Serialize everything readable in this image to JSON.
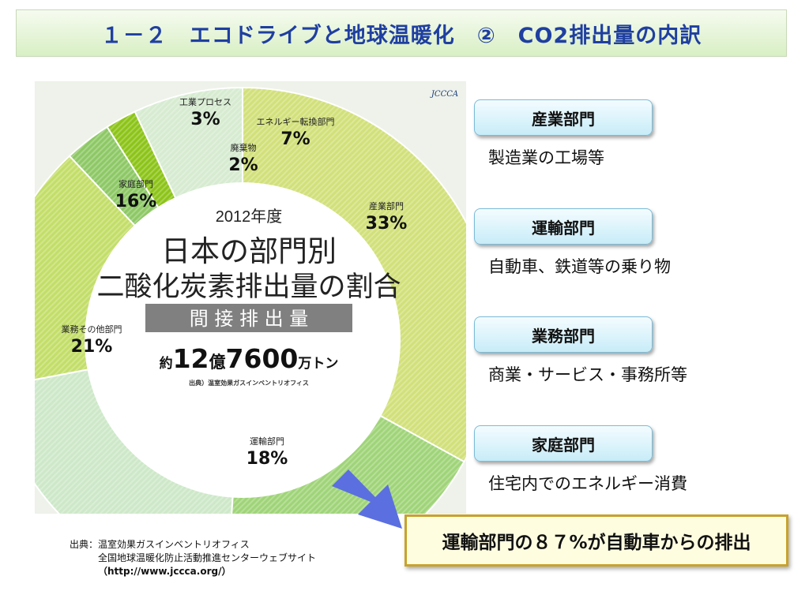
{
  "slide": {
    "title": "１－２　エコドライブと地球温暖化　②　CO2排出量の内訳"
  },
  "chart_data": {
    "type": "pie",
    "variant": "donut",
    "title": "日本の部門別 二酸化炭素排出量の割合",
    "year_label": "2012年度",
    "heading_line1": "日本の部門別",
    "heading_line2": "二酸化炭素排出量の割合",
    "band_label": "間 接 排 出 量",
    "total_prefix": "約",
    "total_num1": "12",
    "total_unit1": "億",
    "total_num2": "7600",
    "total_unit2": "万トン",
    "source": "出典）温室効果ガスインベントリオフィス",
    "logo_text": "JCCCA",
    "slices": [
      {
        "name": "産業部門",
        "value": 33,
        "pct_label": "33%",
        "color": "#d2e07a"
      },
      {
        "name": "運輸部門",
        "value": 18,
        "pct_label": "18%",
        "color": "#9fd478"
      },
      {
        "name": "業務その他部門",
        "value": 21,
        "pct_label": "21%",
        "color": "#cde8c8"
      },
      {
        "name": "家庭部門",
        "value": 16,
        "pct_label": "16%",
        "color": "#c3de68"
      },
      {
        "name": "工業プロセス",
        "value": 3,
        "pct_label": "3%",
        "color": "#8dc865"
      },
      {
        "name": "廃棄物",
        "value": 2,
        "pct_label": "2%",
        "color": "#8cc418"
      },
      {
        "name": "エネルギー転換部門",
        "value": 7,
        "pct_label": "7%",
        "color": "#d6ebd0"
      }
    ]
  },
  "sectors": [
    {
      "label": "産業部門",
      "desc": "製造業の工場等"
    },
    {
      "label": "運輸部門",
      "desc": "自動車、鉄道等の乗り物"
    },
    {
      "label": "業務部門",
      "desc": "商業・サービス・事務所等"
    },
    {
      "label": "家庭部門",
      "desc": "住宅内でのエネルギー消費"
    }
  ],
  "callout": "運輸部門の８７%が自動車からの排出",
  "source_note": {
    "line1": "出典：温室効果ガスインベントリオフィス",
    "line2": "全国地球温暖化防止活動推進センターウェブサイト",
    "line3": "（http://www.jccca.org/）"
  },
  "colors": {
    "title_text": "#1f3fa0",
    "center_band": "#808080",
    "arrow": "#5b6fe0",
    "callout_border": "#c8a22a"
  }
}
